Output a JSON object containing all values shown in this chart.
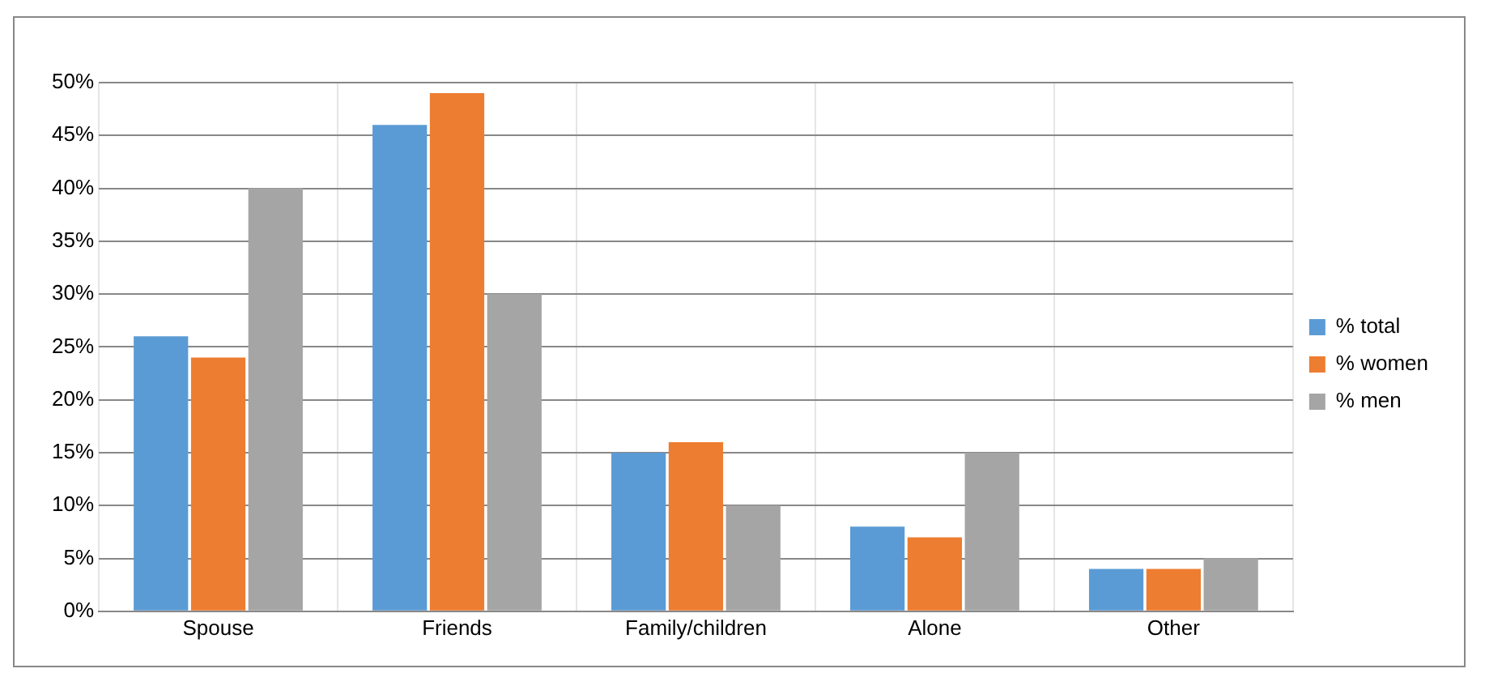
{
  "chart_data": {
    "type": "bar",
    "categories": [
      "Spouse",
      "Friends",
      "Family/children",
      "Alone",
      "Other"
    ],
    "series": [
      {
        "name": "% total",
        "color": "#5b9bd5",
        "values": [
          26,
          46,
          15,
          8,
          4
        ]
      },
      {
        "name": "% women",
        "color": "#ed7d31",
        "values": [
          24,
          49,
          16,
          7,
          4
        ]
      },
      {
        "name": "% men",
        "color": "#a5a5a5",
        "values": [
          40,
          30,
          10,
          15,
          5
        ]
      }
    ],
    "ylim": [
      0,
      50
    ],
    "yticks": [
      {
        "value": 0,
        "label": "0%"
      },
      {
        "value": 5,
        "label": "5%"
      },
      {
        "value": 10,
        "label": "10%"
      },
      {
        "value": 15,
        "label": "15%"
      },
      {
        "value": 20,
        "label": "20%"
      },
      {
        "value": 25,
        "label": "25%"
      },
      {
        "value": 30,
        "label": "30%"
      },
      {
        "value": 35,
        "label": "35%"
      },
      {
        "value": 40,
        "label": "40%"
      },
      {
        "value": 45,
        "label": "45%"
      },
      {
        "value": 50,
        "label": "50%"
      }
    ],
    "grid": true,
    "legend": "right"
  }
}
